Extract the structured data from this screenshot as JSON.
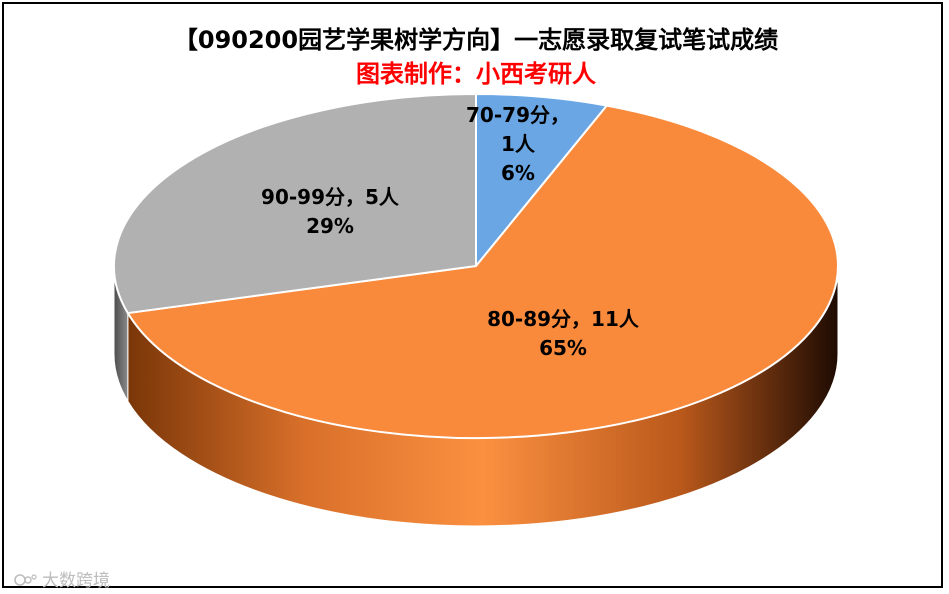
{
  "chart_data": {
    "type": "pie",
    "title": "【090200园艺学果树学方向】一志愿录取复试笔试成绩",
    "subtitle": "图表制作：小西考研人",
    "slices": [
      {
        "label_lines": [
          "70-79分，",
          "1人",
          "6%"
        ],
        "count": 1,
        "percent": 6,
        "color": "#6aa6e4"
      },
      {
        "label_lines": [
          "80-89分，11人",
          "65%"
        ],
        "count": 11,
        "percent": 65,
        "color": "#f98a3c"
      },
      {
        "label_lines": [
          "90-99分，5人",
          "29%"
        ],
        "count": 5,
        "percent": 29,
        "color": "#b1b1b1"
      }
    ],
    "legend": "none"
  },
  "watermark": {
    "text": "大数跨境",
    "icon": "watermark-logo-icon"
  }
}
